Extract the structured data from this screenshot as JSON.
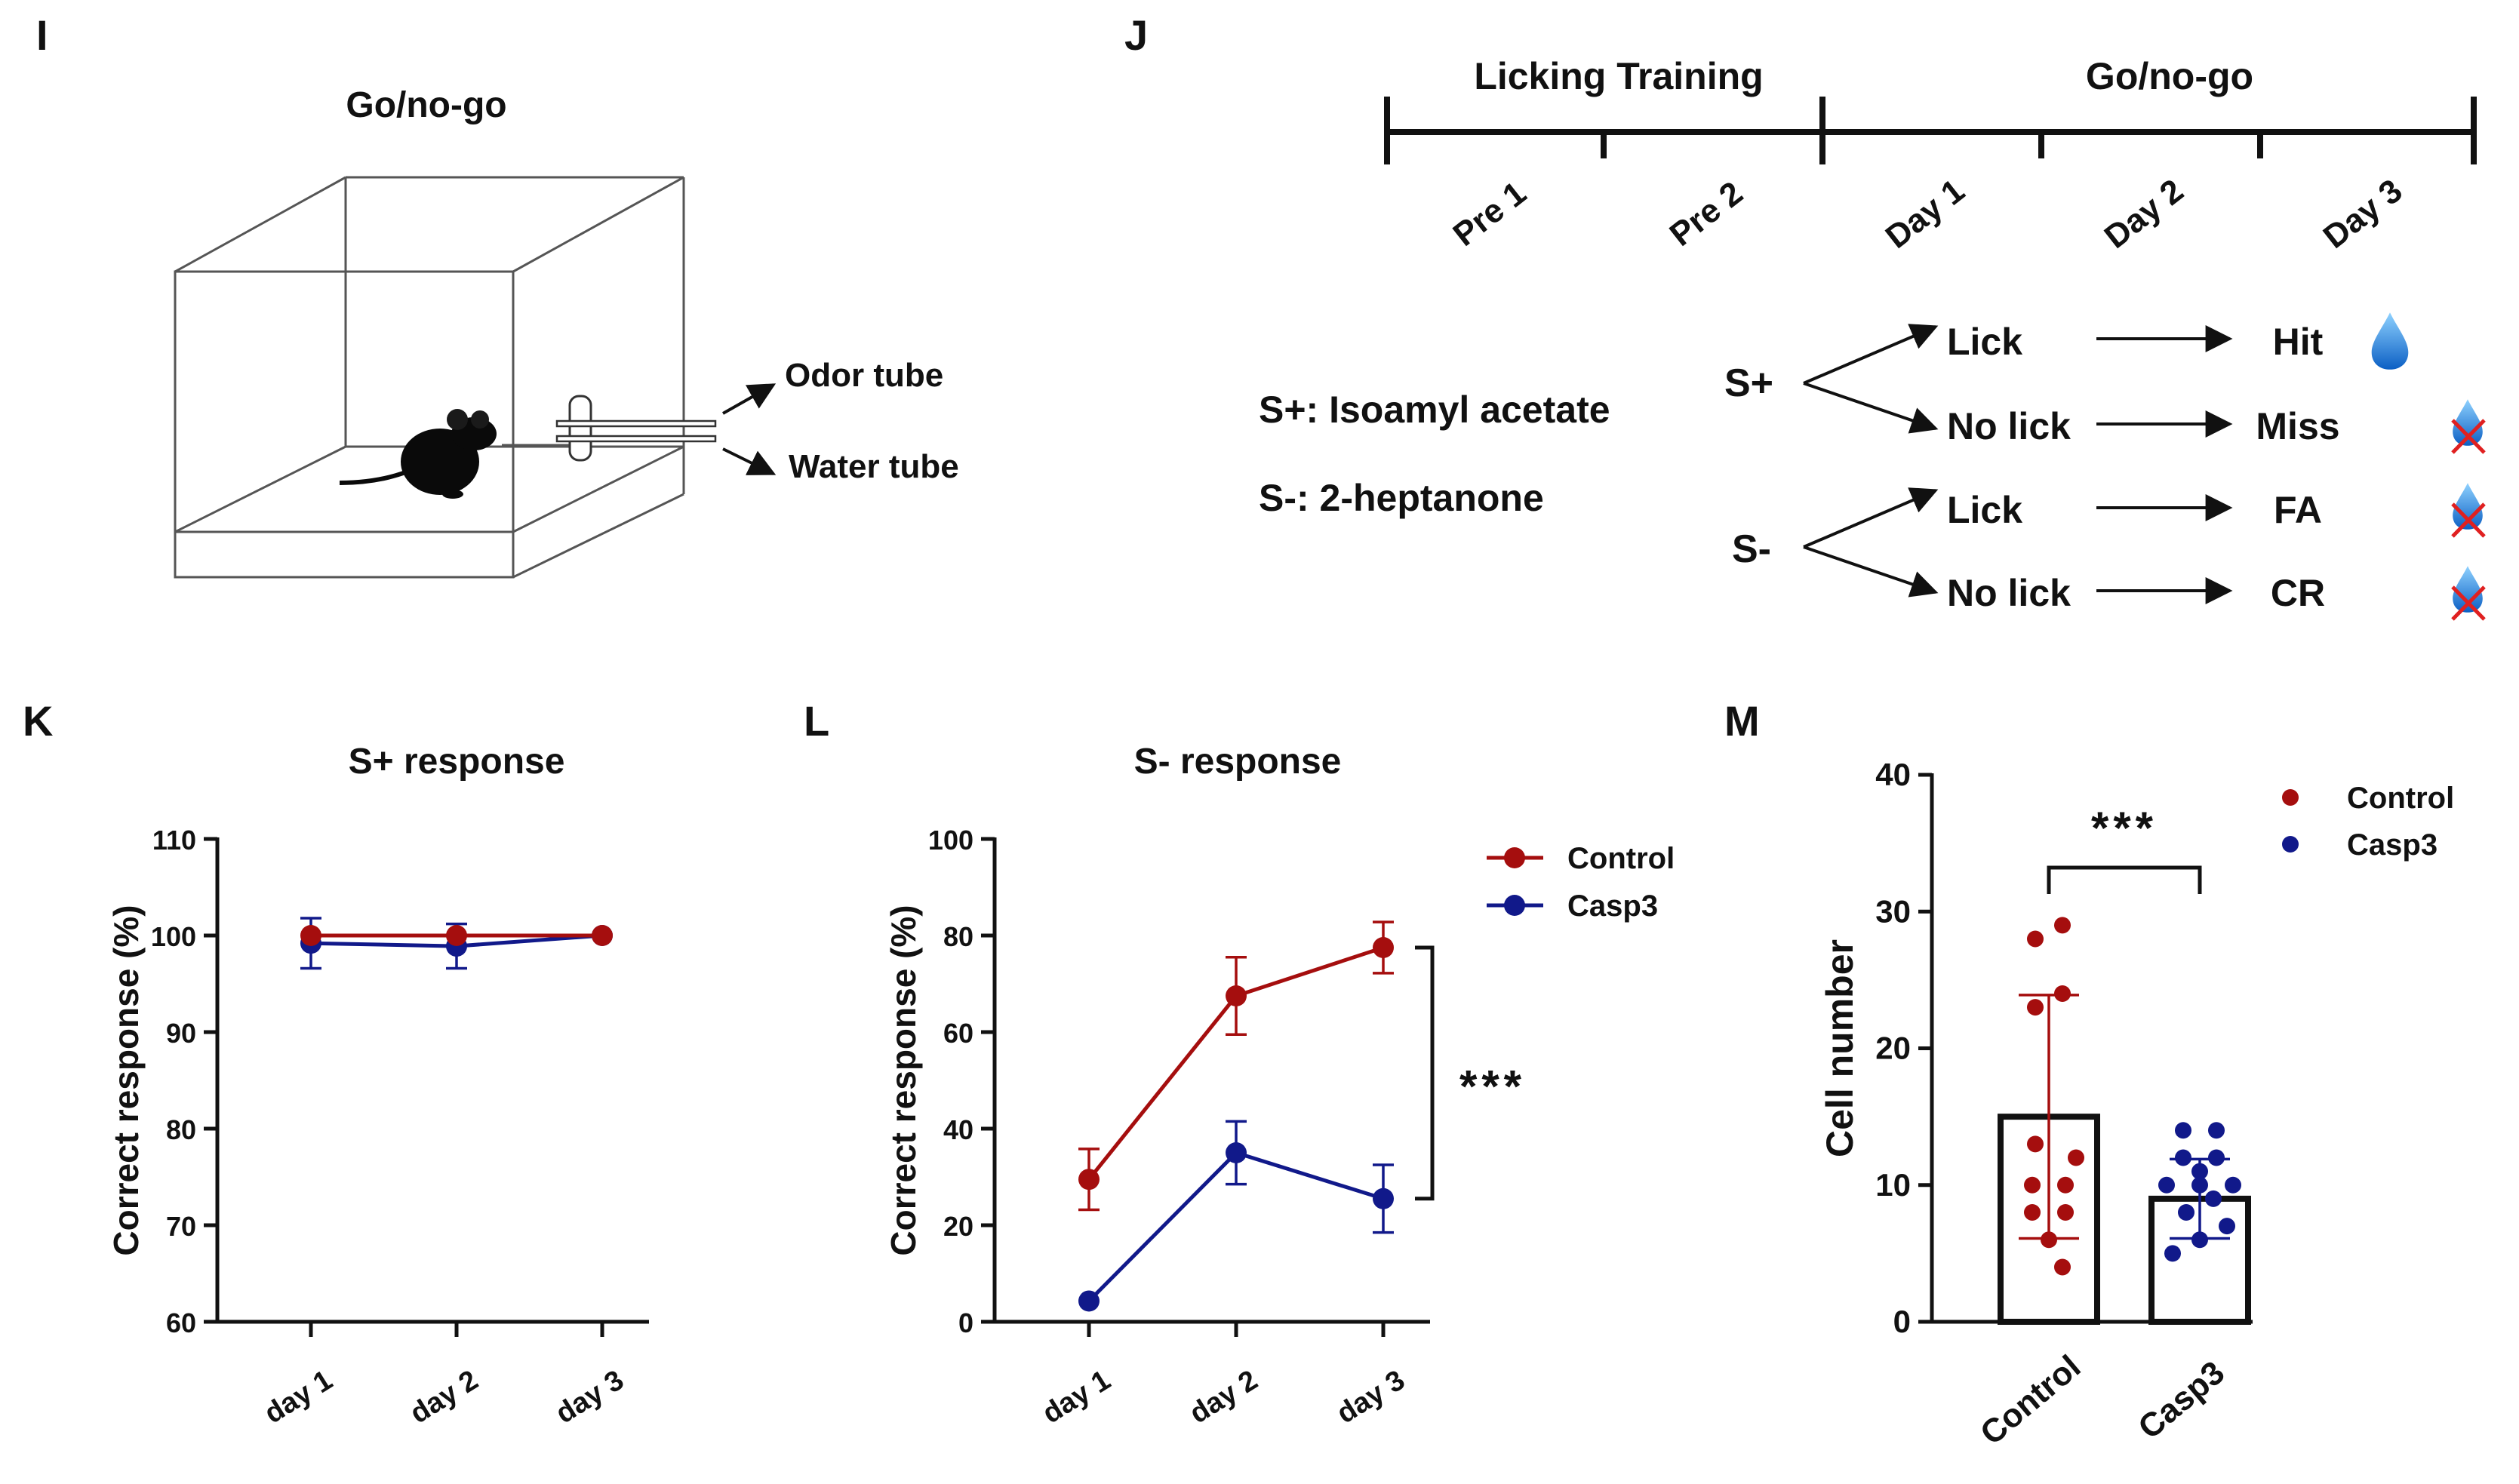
{
  "colors": {
    "control": "#a50e0e",
    "casp3": "#11198a",
    "black": "#111111",
    "drop": "#1e7fd8",
    "cross": "#e02020"
  },
  "panel_letters": {
    "i": "I",
    "j": "J",
    "k": "K",
    "l": "L",
    "m": "M"
  },
  "panel_i": {
    "title": "Go/no-go",
    "odor_tube": "Odor tube",
    "water_tube": "Water tube"
  },
  "panel_j": {
    "phases": [
      "Licking Training",
      "Go/no-go"
    ],
    "days": [
      "Pre 1",
      "Pre 2",
      "Day 1",
      "Day 2",
      "Day 3"
    ],
    "s_plus_def": "S+: Isoamyl acetate",
    "s_minus_def": "S-: 2-heptanone",
    "s_plus": "S+",
    "s_minus": "S-",
    "rows": [
      {
        "action": "Lick",
        "outcome": "Hit",
        "reward": "water-drop-icon"
      },
      {
        "action": "No lick",
        "outcome": "Miss",
        "reward": "no-water-icon"
      },
      {
        "action": "Lick",
        "outcome": "FA",
        "reward": "no-water-icon"
      },
      {
        "action": "No lick",
        "outcome": "CR",
        "reward": "no-water-icon"
      }
    ]
  },
  "chart_data": [
    {
      "id": "K",
      "type": "line",
      "title": "S+ response",
      "xlabel": "",
      "ylabel": "Correct response  (%)",
      "categories": [
        "day 1",
        "day 2",
        "day 3"
      ],
      "ylim": [
        60,
        110
      ],
      "yticks": [
        60,
        70,
        80,
        90,
        100,
        110
      ],
      "series": [
        {
          "name": "Control",
          "values": [
            100,
            100,
            100
          ],
          "errors": [
            0,
            0,
            0
          ]
        },
        {
          "name": "Casp3",
          "values": [
            99.2,
            98.9,
            100
          ],
          "errors": [
            2.6,
            2.3,
            0
          ]
        }
      ]
    },
    {
      "id": "L",
      "type": "line",
      "title": "S- response",
      "xlabel": "",
      "ylabel": "Correct response  (%)",
      "categories": [
        "day 1",
        "day 2",
        "day 3"
      ],
      "ylim": [
        0,
        100
      ],
      "yticks": [
        0,
        20,
        40,
        60,
        80,
        100
      ],
      "series": [
        {
          "name": "Control",
          "values": [
            29.5,
            67.5,
            77.5
          ],
          "errors": [
            6.3,
            8,
            5.3
          ]
        },
        {
          "name": "Casp3",
          "values": [
            4.3,
            35,
            25.5
          ],
          "errors": [
            0,
            6.5,
            7
          ]
        }
      ],
      "legend": [
        "Control",
        "Casp3"
      ],
      "annotation": "***"
    },
    {
      "id": "M",
      "type": "bar",
      "title": "",
      "xlabel": "",
      "ylabel": "Cell number",
      "categories": [
        "Control",
        "Casp3"
      ],
      "ylim": [
        0,
        40
      ],
      "yticks": [
        0,
        10,
        20,
        30,
        40
      ],
      "values": [
        15,
        9
      ],
      "errors": [
        8.9,
        2.9
      ],
      "points": [
        [
          29,
          28,
          24,
          23,
          13,
          12,
          10,
          10,
          8,
          8,
          6,
          4
        ],
        [
          14,
          14,
          12,
          12,
          11,
          10,
          10,
          10,
          9,
          8,
          7,
          6,
          5
        ]
      ],
      "legend": [
        "Control",
        "Casp3"
      ],
      "annotation": "***"
    }
  ]
}
